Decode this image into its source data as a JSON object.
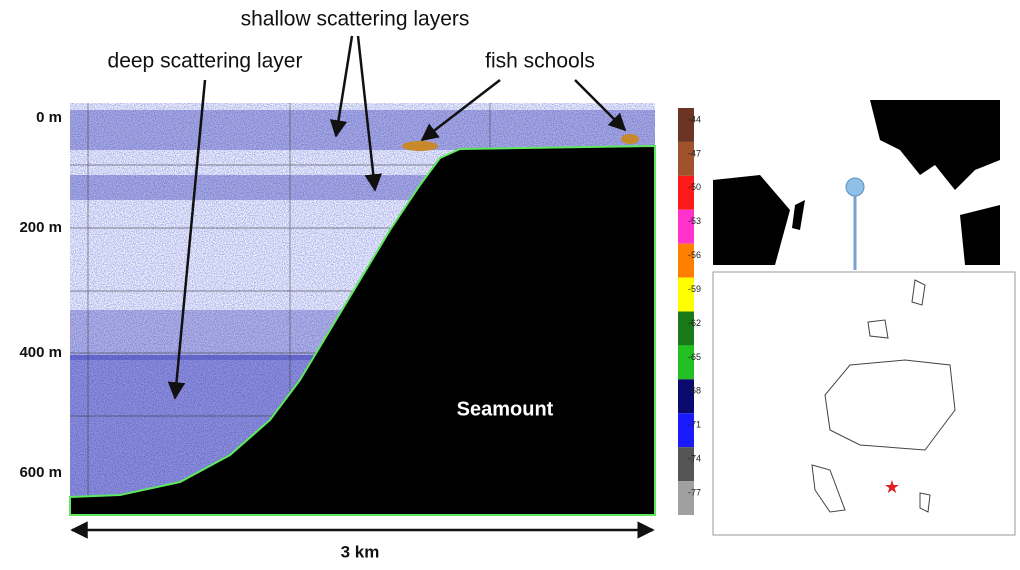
{
  "annotations": {
    "shallow": "shallow scattering layers",
    "deep": "deep scattering layer",
    "fish": "fish schools"
  },
  "echogram": {
    "depth_labels": [
      "0 m",
      "200 m",
      "400 m",
      "600 m"
    ],
    "seamount_label": "Seamount",
    "distance_label": "3 km"
  },
  "color_scale": {
    "labels": [
      -44,
      -47,
      -50,
      -53,
      -56,
      -59,
      -62,
      -65,
      -68,
      -71,
      -74,
      -77
    ],
    "colors": [
      "#6b3424",
      "#a0522d",
      "#ff1a1a",
      "#ff33cc",
      "#ff8000",
      "#ffff00",
      "#1a7a1a",
      "#22c022",
      "#0a0a6e",
      "#1a1aff",
      "#555555",
      "#a0a0a0"
    ]
  }
}
